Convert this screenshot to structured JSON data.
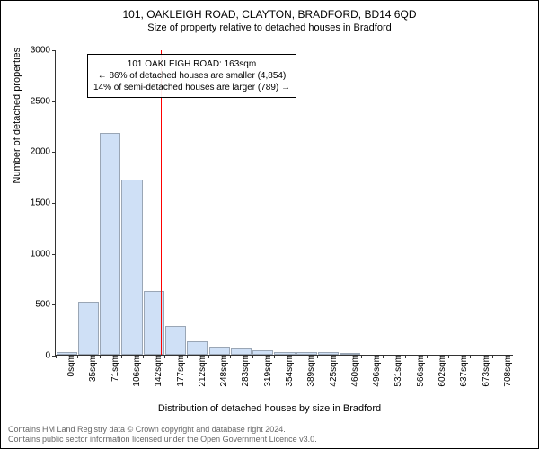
{
  "title": "101, OAKLEIGH ROAD, CLAYTON, BRADFORD, BD14 6QD",
  "subtitle": "Size of property relative to detached houses in Bradford",
  "chart": {
    "type": "histogram",
    "ylabel": "Number of detached properties",
    "xlabel": "Distribution of detached houses by size in Bradford",
    "ylim": [
      0,
      3000
    ],
    "yticks": [
      0,
      500,
      1000,
      1500,
      2000,
      2500,
      3000
    ],
    "categories": [
      "0sqm",
      "35sqm",
      "71sqm",
      "106sqm",
      "142sqm",
      "177sqm",
      "212sqm",
      "248sqm",
      "283sqm",
      "319sqm",
      "354sqm",
      "389sqm",
      "425sqm",
      "460sqm",
      "496sqm",
      "531sqm",
      "566sqm",
      "602sqm",
      "637sqm",
      "673sqm",
      "708sqm"
    ],
    "values": [
      30,
      520,
      2180,
      1720,
      630,
      280,
      130,
      80,
      60,
      40,
      30,
      30,
      30,
      20,
      0,
      0,
      0,
      0,
      0,
      0
    ],
    "bar_fill": "#cfe0f6",
    "bar_stroke": "#9aa6b5",
    "background": "#ffffff",
    "grid_color": "#333333",
    "marker": {
      "value_sqm": 163,
      "color": "#ff0000",
      "label_lines": [
        "101 OAKLEIGH ROAD: 163sqm",
        "← 86% of detached houses are smaller (4,854)",
        "14% of semi-detached houses are larger (789) →"
      ]
    }
  },
  "footer": {
    "line1": "Contains HM Land Registry data © Crown copyright and database right 2024.",
    "line2": "Contains public sector information licensed under the Open Government Licence v3.0."
  }
}
